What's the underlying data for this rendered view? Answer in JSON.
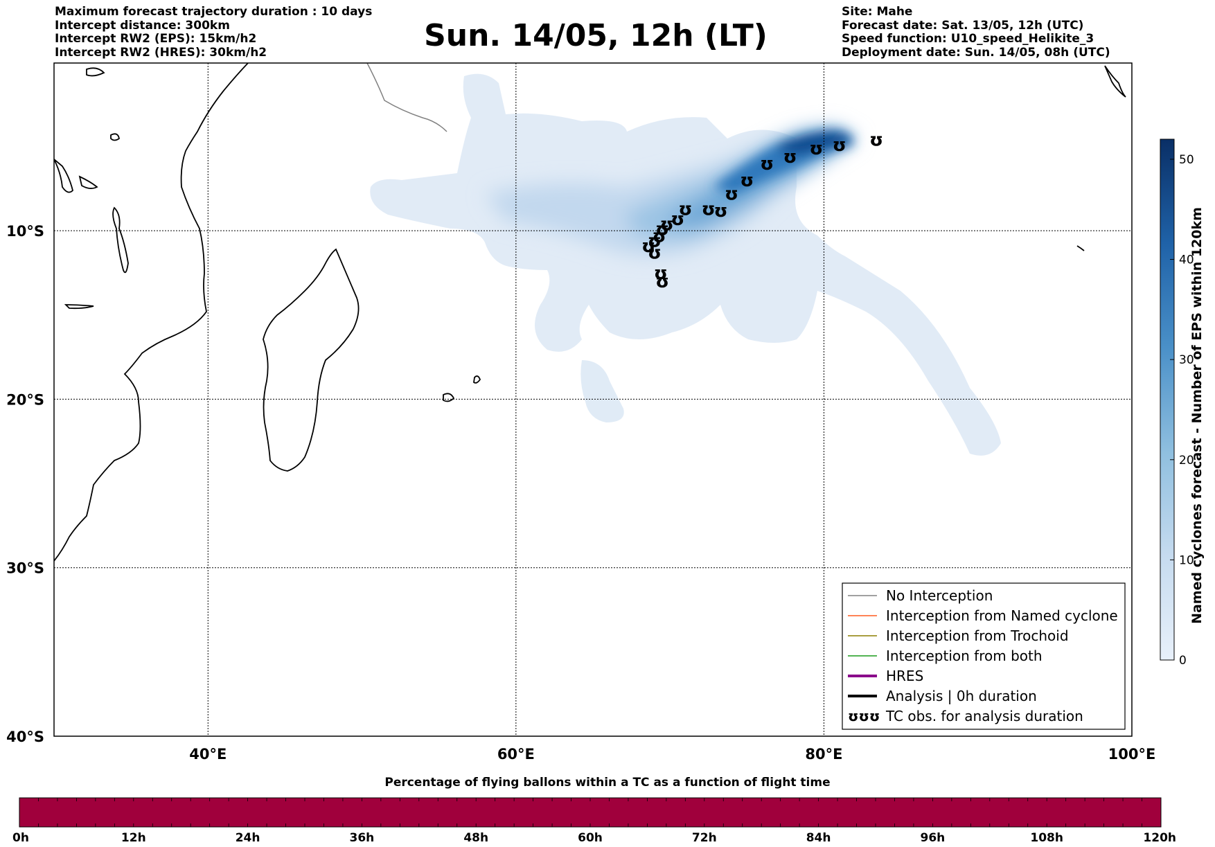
{
  "header": {
    "left_lines": [
      "Maximum forecast trajectory duration : 10 days",
      "Intercept distance: 300km",
      "Intercept RW2 (EPS):  15km/h2",
      "Intercept RW2 (HRES): 30km/h2"
    ],
    "title": "Sun. 14/05, 12h (LT)",
    "right_lines": [
      "Site: Mahe",
      "Forecast date: Sat. 13/05, 12h (UTC)",
      "Speed function: U10_speed_Helikite_3",
      "Deployment date: Sun. 14/05, 08h (UTC)"
    ]
  },
  "map": {
    "lon_range": [
      30,
      100
    ],
    "lat_range": [
      -40,
      -0.05
    ],
    "lon_ticks": [
      {
        "value": 40,
        "label": "40°E"
      },
      {
        "value": 60,
        "label": "60°E"
      },
      {
        "value": 80,
        "label": "80°E"
      },
      {
        "value": 100,
        "label": "100°E"
      }
    ],
    "lat_ticks": [
      {
        "value": -10,
        "label": "10°S"
      },
      {
        "value": -20,
        "label": "20°S"
      },
      {
        "value": -30,
        "label": "30°S"
      },
      {
        "value": -40,
        "label": "40°S"
      }
    ],
    "cyclone_track_symbol": "ʊ",
    "cyclone_track": [
      [
        83.4,
        -4.6
      ],
      [
        81.0,
        -4.9
      ],
      [
        79.5,
        -5.1
      ],
      [
        77.8,
        -5.6
      ],
      [
        76.3,
        -6.0
      ],
      [
        75.0,
        -7.0
      ],
      [
        74.0,
        -7.8
      ],
      [
        73.3,
        -8.8
      ],
      [
        72.5,
        -8.7
      ],
      [
        71.0,
        -8.7
      ],
      [
        70.5,
        -9.3
      ],
      [
        69.8,
        -9.6
      ],
      [
        69.5,
        -9.9
      ],
      [
        69.3,
        -10.3
      ],
      [
        69.0,
        -10.6
      ],
      [
        68.6,
        -10.9
      ],
      [
        69.0,
        -11.3
      ],
      [
        69.4,
        -12.5
      ],
      [
        69.5,
        -13.0
      ]
    ]
  },
  "legend": {
    "items": [
      {
        "label": "No Interception",
        "color": "#808080",
        "width": 1.5
      },
      {
        "label": "Interception from Named cyclone",
        "color": "#ff5a1e",
        "width": 1.5
      },
      {
        "label": "Interception from Trochoid",
        "color": "#8c7f00",
        "width": 1.5
      },
      {
        "label": "Interception from both",
        "color": "#1a9a1a",
        "width": 1.5
      },
      {
        "label": "HRES",
        "color": "#8b0a8b",
        "width": 4
      },
      {
        "label": "Analysis | 0h duration",
        "color": "#000000",
        "width": 4
      },
      {
        "label": "TC obs. for analysis duration",
        "symbol": "ʊʊʊ"
      }
    ]
  },
  "colorbar": {
    "label": "Named cyclones forecast - Number of EPS within 120km",
    "min": 0,
    "max": 52,
    "ticks": [
      0,
      10,
      20,
      30,
      40,
      50
    ],
    "color_low": "#e8f0fa",
    "color_high": "#0a2f66"
  },
  "time_bar": {
    "title": "Percentage of flying ballons within a TC as a function of flight time",
    "color": "#a0003c",
    "ticks": [
      "0h",
      "12h",
      "24h",
      "36h",
      "48h",
      "60h",
      "72h",
      "84h",
      "96h",
      "108h",
      "120h"
    ]
  }
}
